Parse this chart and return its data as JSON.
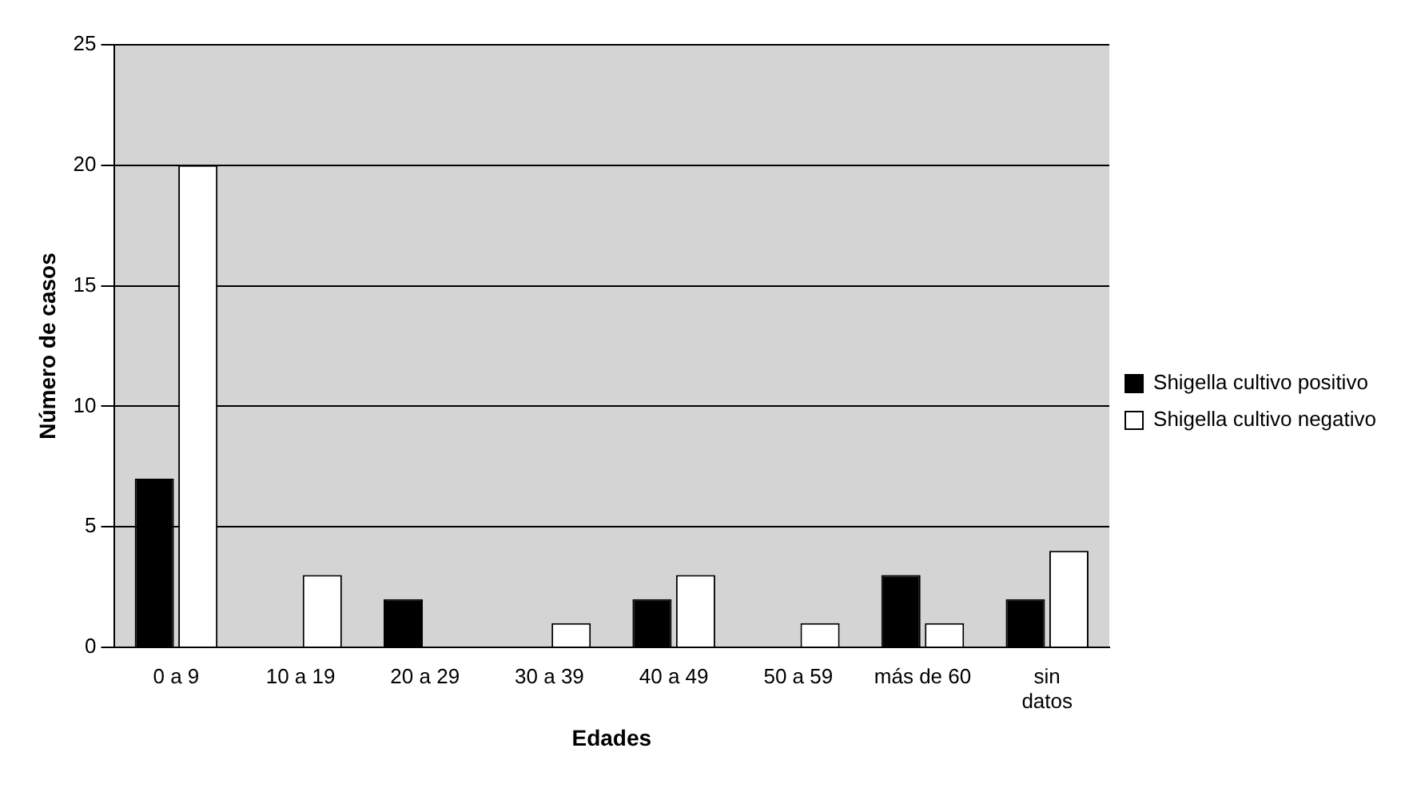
{
  "chart_data": {
    "type": "bar",
    "xlabel": "Edades",
    "ylabel": "Número de casos",
    "categories": [
      "0 a 9",
      "10 a 19",
      "20 a 29",
      "30 a 39",
      "40 a 49",
      "50 a 59",
      "más de 60",
      "sin datos"
    ],
    "series": [
      {
        "name": "Shigella cultivo positivo",
        "color": "#000000",
        "values": [
          7,
          0,
          2,
          0,
          2,
          0,
          3,
          2
        ]
      },
      {
        "name": "Shigella cultivo negativo",
        "color": "#ffffff",
        "values": [
          20,
          3,
          0,
          1,
          3,
          1,
          1,
          4
        ]
      }
    ],
    "ylim": [
      0,
      25
    ],
    "yticks": [
      0,
      5,
      10,
      15,
      20,
      25
    ],
    "grid": "y",
    "legend": "right"
  }
}
